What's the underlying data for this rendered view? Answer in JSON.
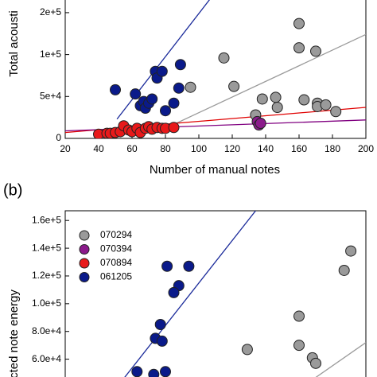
{
  "chart_data": [
    {
      "type": "scatter",
      "y_label": "Total acousti",
      "x_label": "Number of manual notes",
      "xlim": [
        20,
        200
      ],
      "xticks": [
        20,
        40,
        60,
        80,
        100,
        120,
        140,
        160,
        180,
        200
      ],
      "ylim": [
        0,
        167000
      ],
      "yticks": [
        0,
        {
          "value": 50000,
          "label": "5e+4"
        },
        {
          "value": 100000,
          "label": "1e+5"
        },
        {
          "value": 150000,
          "label": "2e+5"
        }
      ],
      "series": [
        {
          "color": "#9a9a9a",
          "x": [
            160,
            160,
            170,
            115,
            121,
            95,
            138,
            146,
            147,
            163,
            171,
            171,
            176,
            182,
            134
          ],
          "values": [
            137000,
            108000,
            104000,
            96000,
            62000,
            61000,
            47000,
            49000,
            37000,
            46000,
            42000,
            38000,
            40000,
            32000,
            28000
          ]
        },
        {
          "color": "#8b1a8b",
          "x": [
            135,
            136,
            137
          ],
          "values": [
            20000,
            16000,
            18000
          ]
        },
        {
          "color": "#e8191a",
          "x": [
            40,
            45,
            47,
            50,
            53,
            55,
            58,
            60,
            63,
            65,
            68,
            70,
            72,
            75,
            78,
            80,
            85
          ],
          "values": [
            5000,
            6000,
            6000,
            7000,
            8000,
            15000,
            10000,
            8000,
            12000,
            7000,
            12000,
            14000,
            11000,
            13000,
            12000,
            12000,
            13000
          ]
        },
        {
          "color": "#0a1a8a",
          "x": [
            50,
            62,
            65,
            67,
            68,
            70,
            72,
            74,
            75,
            78,
            80,
            85,
            88,
            89
          ],
          "values": [
            58000,
            53000,
            39000,
            44000,
            36000,
            42000,
            47000,
            80000,
            72000,
            80000,
            33000,
            42000,
            60000,
            88000
          ]
        }
      ],
      "fits": [
        {
          "color": "#1a2a9a",
          "x": [
            51,
            107
          ],
          "values": [
            23000,
            167000
          ]
        },
        {
          "color": "#9a9a9a",
          "x": [
            80,
            200
          ],
          "values": [
            12000,
            124000
          ]
        },
        {
          "color": "#e00000",
          "x": [
            20,
            200
          ],
          "values": [
            7000,
            37000
          ]
        },
        {
          "color": "#800080",
          "x": [
            20,
            200
          ],
          "values": [
            9000,
            22000
          ]
        }
      ]
    },
    {
      "type": "scatter",
      "panel": "(b)",
      "y_label": "cted note energy",
      "xlim": [
        20,
        200
      ],
      "ylim": [
        46000,
        167000
      ],
      "yticks": [
        {
          "value": 60000,
          "label": "6.0e+4"
        },
        {
          "value": 80000,
          "label": "8.0e+4"
        },
        {
          "value": 100000,
          "label": "1.0e+5"
        },
        {
          "value": 120000,
          "label": "1.2e+5"
        },
        {
          "value": 140000,
          "label": "1.4e+5"
        },
        {
          "value": 160000,
          "label": "1.6e+5"
        }
      ],
      "series": [
        {
          "name": "070294",
          "color": "#9a9a9a",
          "x": [
            191,
            187,
            160,
            160,
            168,
            170,
            129
          ],
          "values": [
            138000,
            124000,
            91000,
            70000,
            61000,
            57000,
            67000
          ]
        },
        {
          "name": "070394",
          "color": "#8b1a8b",
          "x": [],
          "values": []
        },
        {
          "name": "070894",
          "color": "#e8191a",
          "x": [],
          "values": []
        },
        {
          "name": "061205",
          "color": "#0a1a8a",
          "x": [
            81,
            94,
            88,
            85,
            77,
            74,
            78,
            63,
            73,
            80
          ],
          "values": [
            127000,
            127000,
            113000,
            108000,
            85000,
            75000,
            73000,
            51000,
            49000,
            51000
          ]
        }
      ],
      "fits": [
        {
          "color": "#1a2a9a",
          "x": [
            55,
            134
          ],
          "values": [
            46000,
            167000
          ]
        },
        {
          "color": "#9a9a9a",
          "x": [
            169,
            200
          ],
          "values": [
            46000,
            72000
          ]
        }
      ]
    }
  ]
}
